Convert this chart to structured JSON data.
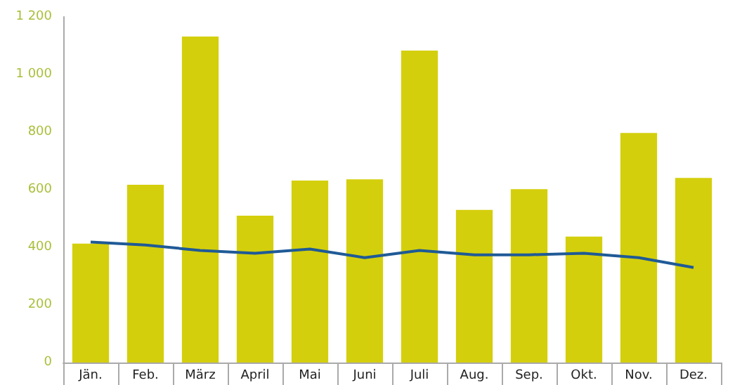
{
  "chart_data": {
    "type": "bar",
    "categories": [
      "Jän.",
      "Feb.",
      "März",
      "April",
      "Mai",
      "Juni",
      "Juli",
      "Aug.",
      "Sep.",
      "Okt.",
      "Nov.",
      "Dez."
    ],
    "series": [
      {
        "color": "#d4cf0c",
        "values": [
          413,
          617,
          1132,
          510,
          632,
          636,
          1083,
          530,
          602,
          437,
          797,
          641
        ]
      },
      {
        "type": "line",
        "color": "#1f5a96",
        "values": [
          418,
          408,
          389,
          379,
          394,
          364,
          389,
          374,
          374,
          379,
          364,
          330
        ]
      }
    ],
    "ylim": [
      0,
      1200
    ],
    "yticks": [
      0,
      {
        "value": 200,
        "label": "200"
      },
      {
        "value": 400,
        "label": "400"
      },
      {
        "value": 600,
        "label": "600"
      },
      {
        "value": 800,
        "label": "800"
      },
      {
        "value": 1000,
        "label": "1 000"
      },
      {
        "value": 1200,
        "label": "1 200"
      }
    ],
    "grid": false,
    "marker": "none",
    "line_style": "solid"
  }
}
